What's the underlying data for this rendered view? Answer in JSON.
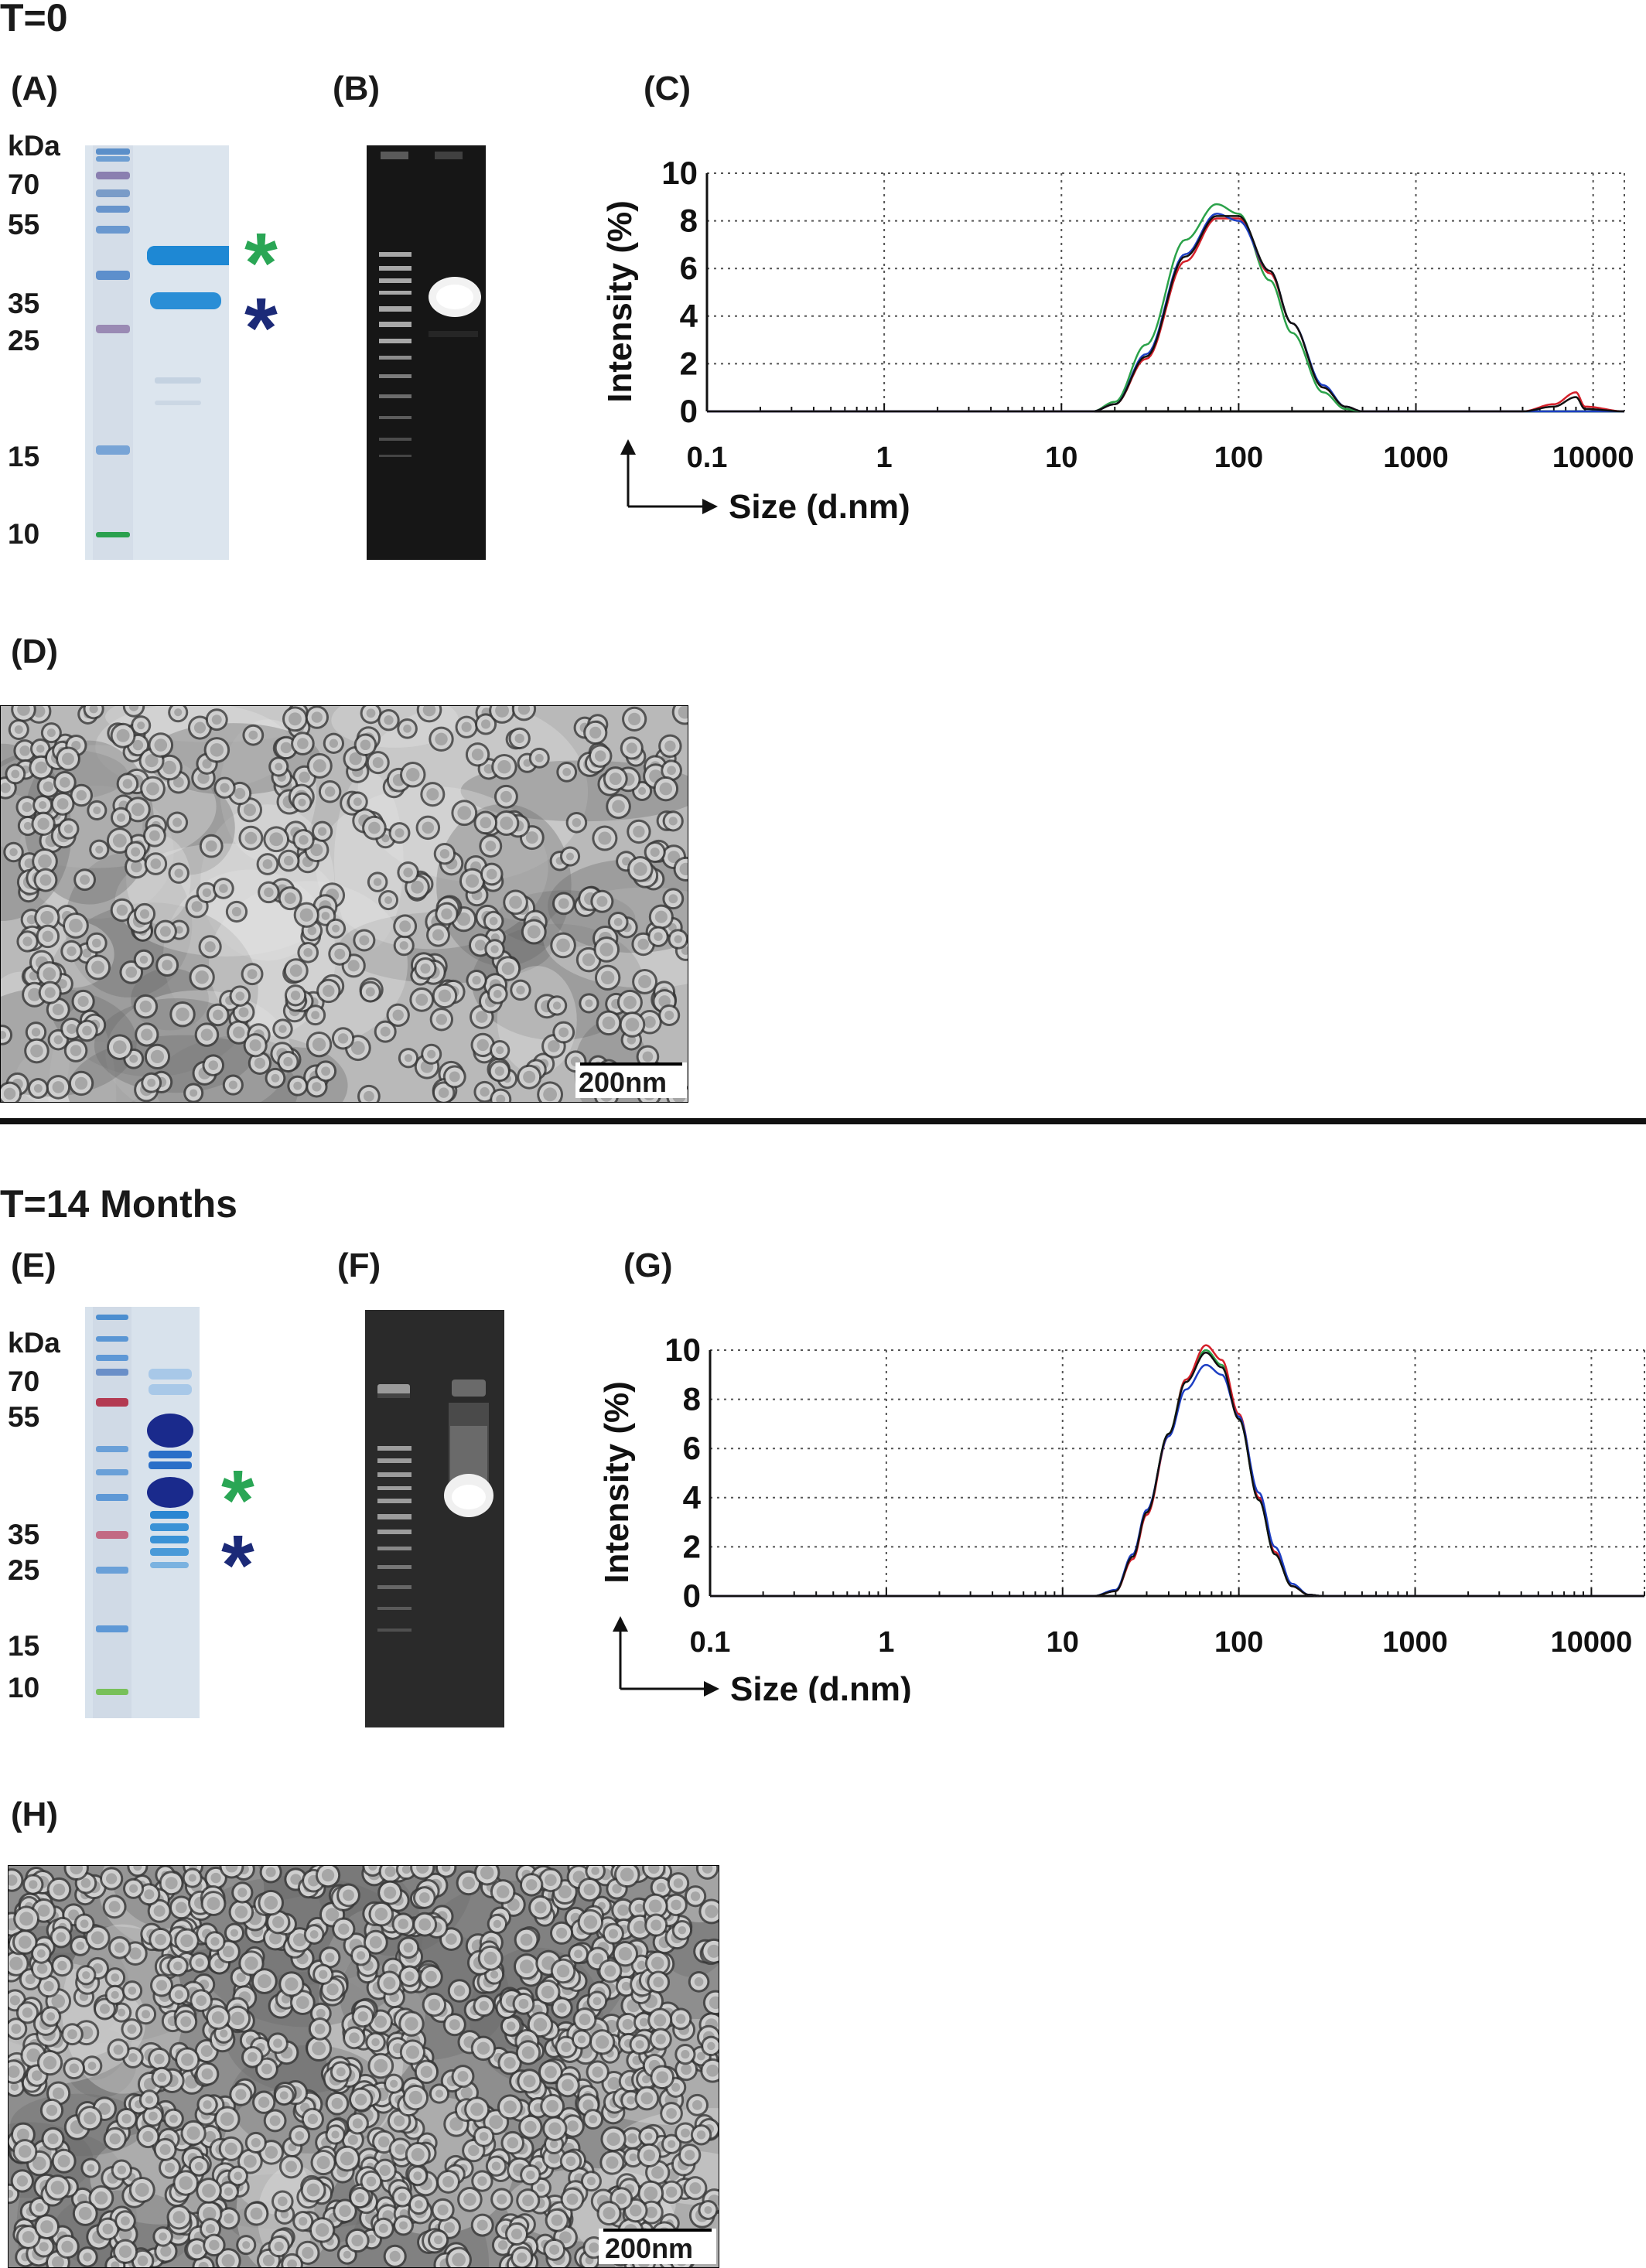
{
  "sections": [
    {
      "title": "T=0",
      "panels": {
        "sds": "(A)",
        "agarose": "(B)",
        "dls": "(C)",
        "tem": "(D)"
      },
      "kda_label": "kDa",
      "markers": [
        "70",
        "55",
        "35",
        "25",
        "15",
        "10"
      ],
      "tem_scale": "200nm"
    },
    {
      "title": "T=14 Months",
      "panels": {
        "sds": "(E)",
        "agarose": "(F)",
        "dls": "(G)",
        "tem": "(H)"
      },
      "kda_label": "kDa",
      "markers": [
        "70",
        "55",
        "35",
        "25",
        "15",
        "10"
      ],
      "tem_scale": "200nm"
    }
  ],
  "stars": {
    "glyph": "*",
    "green": "#2aa655",
    "blue": "#1c2a78"
  },
  "colors": {
    "green_trace": "#2ba24a",
    "red_trace": "#d4202a",
    "blue_trace": "#1d3fc4",
    "black_trace": "#111111"
  },
  "chart_data": [
    {
      "type": "line",
      "panel": "(C)",
      "title": "",
      "xlabel": "Size (d.nm)",
      "ylabel": "Intensity (%)",
      "x_scale": "log",
      "xlim": [
        0.1,
        15000
      ],
      "ylim": [
        0,
        10
      ],
      "xticks": [
        "0.1",
        "1",
        "10",
        "100",
        "1000",
        "10000"
      ],
      "yticks": [
        "0",
        "2",
        "4",
        "6",
        "8",
        "10"
      ],
      "grid": true,
      "series": [
        {
          "color": "#2ba24a",
          "x": [
            0.1,
            10,
            15,
            20,
            30,
            50,
            75,
            100,
            150,
            200,
            300,
            400,
            500,
            15000
          ],
          "y": [
            0,
            0,
            0,
            0.4,
            2.8,
            7.2,
            8.7,
            8.3,
            5.5,
            3.3,
            0.8,
            0.1,
            0,
            0
          ]
        },
        {
          "color": "#d4202a",
          "x": [
            0.1,
            10,
            15,
            20,
            30,
            50,
            75,
            100,
            150,
            200,
            300,
            400,
            500,
            4000,
            6000,
            8000,
            9000,
            15000
          ],
          "y": [
            0,
            0,
            0,
            0.3,
            2.2,
            6.3,
            8.1,
            8.1,
            5.8,
            3.7,
            1.0,
            0.2,
            0,
            0,
            0.3,
            0.8,
            0.2,
            0
          ]
        },
        {
          "color": "#1d3fc4",
          "x": [
            0.1,
            10,
            15,
            20,
            30,
            50,
            75,
            100,
            150,
            200,
            300,
            400,
            500,
            15000
          ],
          "y": [
            0,
            0,
            0,
            0.3,
            2.4,
            6.6,
            8.3,
            8.0,
            5.9,
            3.7,
            1.1,
            0.2,
            0,
            0
          ]
        },
        {
          "color": "#111111",
          "x": [
            0.1,
            10,
            15,
            20,
            30,
            50,
            75,
            100,
            150,
            200,
            300,
            400,
            500,
            4000,
            6000,
            8000,
            9000,
            15000
          ],
          "y": [
            0,
            0,
            0,
            0.3,
            2.3,
            6.5,
            8.2,
            8.2,
            5.9,
            3.7,
            1.0,
            0.2,
            0,
            0,
            0.2,
            0.6,
            0.1,
            0
          ]
        }
      ]
    },
    {
      "type": "line",
      "panel": "(G)",
      "title": "",
      "xlabel": "Size (d.nm)",
      "ylabel": "Intensity (%)",
      "x_scale": "log",
      "xlim": [
        0.1,
        20000
      ],
      "ylim": [
        0,
        10
      ],
      "xticks": [
        "0.1",
        "1",
        "10",
        "100",
        "1000",
        "10000"
      ],
      "yticks": [
        "0",
        "2",
        "4",
        "6",
        "8",
        "10"
      ],
      "grid": true,
      "series": [
        {
          "color": "#2ba24a",
          "x": [
            0.1,
            15,
            20,
            25,
            30,
            40,
            50,
            65,
            80,
            100,
            130,
            160,
            200,
            250,
            300,
            20000
          ],
          "y": [
            0,
            0,
            0.2,
            1.6,
            3.4,
            6.6,
            8.8,
            10.0,
            9.4,
            7.2,
            3.9,
            1.7,
            0.4,
            0.05,
            0,
            0
          ]
        },
        {
          "color": "#d4202a",
          "x": [
            0.1,
            15,
            20,
            25,
            30,
            40,
            50,
            65,
            80,
            100,
            130,
            160,
            200,
            250,
            300,
            20000
          ],
          "y": [
            0,
            0,
            0.2,
            1.5,
            3.3,
            6.5,
            8.8,
            10.2,
            9.6,
            7.4,
            4.0,
            1.8,
            0.4,
            0.05,
            0,
            0
          ]
        },
        {
          "color": "#1d3fc4",
          "x": [
            0.1,
            15,
            20,
            25,
            30,
            40,
            50,
            65,
            80,
            100,
            130,
            160,
            200,
            250,
            300,
            20000
          ],
          "y": [
            0,
            0,
            0.25,
            1.7,
            3.5,
            6.5,
            8.4,
            9.4,
            9.0,
            7.3,
            4.2,
            2.0,
            0.5,
            0.05,
            0,
            0
          ]
        },
        {
          "color": "#111111",
          "x": [
            0.1,
            15,
            20,
            25,
            30,
            40,
            50,
            65,
            80,
            100,
            130,
            160,
            200,
            250,
            300,
            20000
          ],
          "y": [
            0,
            0,
            0.2,
            1.6,
            3.4,
            6.6,
            8.7,
            9.9,
            9.3,
            7.2,
            3.9,
            1.7,
            0.4,
            0.05,
            0,
            0
          ]
        }
      ]
    }
  ]
}
